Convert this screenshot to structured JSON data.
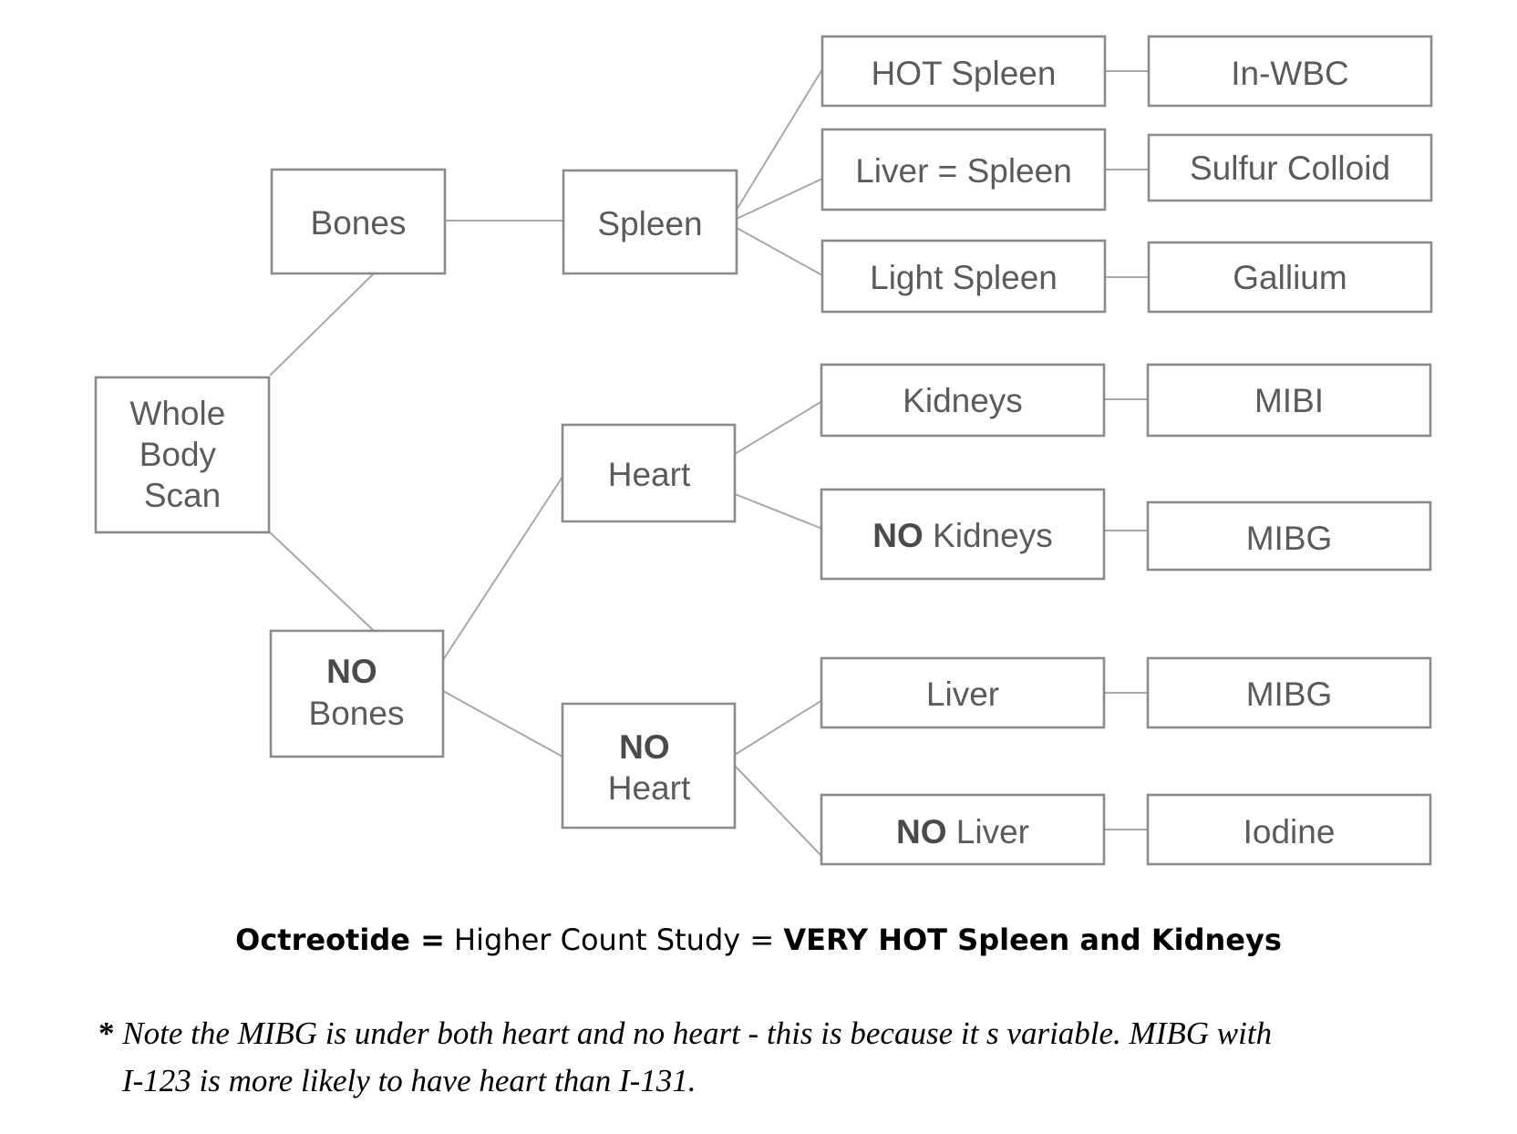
{
  "nodes": {
    "whole_body_scan": [
      "Whole",
      "Body",
      "Scan"
    ],
    "bones": "Bones",
    "no_bones": {
      "bold": "NO",
      "text": "Bones"
    },
    "spleen": "Spleen",
    "heart": "Heart",
    "no_heart": {
      "bold": "NO",
      "text": "Heart"
    },
    "hot_spleen": "HOT Spleen",
    "liver_eq_spleen": "Liver = Spleen",
    "light_spleen": "Light Spleen",
    "kidneys": "Kidneys",
    "no_kidneys": {
      "bold": "NO",
      "text": " Kidneys"
    },
    "liver": "Liver",
    "no_liver": {
      "bold": "NO",
      "text": " Liver"
    },
    "in_wbc": "In-WBC",
    "sulfur_colloid": "Sulfur Colloid",
    "gallium": "Gallium",
    "mibi": "MIBI",
    "mibg_1": "MIBG",
    "mibg_2": "MIBG",
    "iodine": "Iodine"
  },
  "formula": {
    "part1": "Octreotide =",
    "part2": " Higher Count Study = ",
    "part3": "VERY HOT Spleen and Kidneys"
  },
  "note": {
    "star": "*",
    "line1": " Note the MIBG is under both heart and no heart - this is because it s variable. MIBG with",
    "line2": "I-123 is more likely to have heart than I-131."
  }
}
